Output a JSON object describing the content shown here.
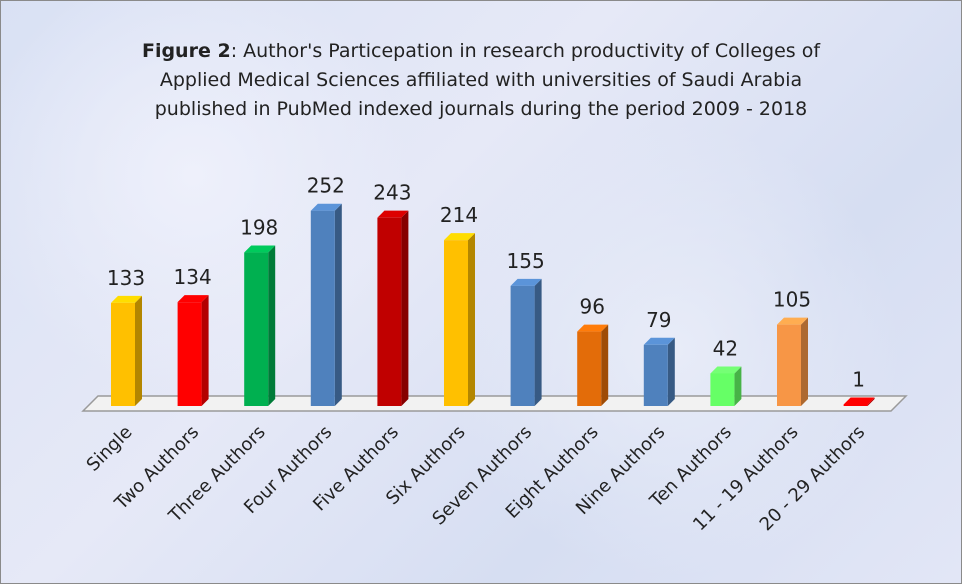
{
  "chart_data": {
    "type": "bar3d",
    "title_prefix": "Figure 2",
    "title": ": Author's Particepation in research productivity of Colleges of Applied Medical Sciences affiliated with universities of Saudi Arabia published in PubMed indexed journals during the period 2009 - 2018",
    "categories": [
      "Single",
      "Two Authors",
      "Three Authors",
      "Four Authors",
      "Five Authors",
      "Six Authors",
      "Seven Authors",
      "Eight Authors",
      "Nine Authors",
      "Ten Authors",
      "11 - 19 Authors",
      "20 - 29 Authors"
    ],
    "values": [
      133,
      134,
      198,
      252,
      243,
      214,
      155,
      96,
      79,
      42,
      105,
      1
    ],
    "colors": [
      "#ffc000",
      "#ff0000",
      "#00b050",
      "#4f81bd",
      "#c00000",
      "#ffc000",
      "#4f81bd",
      "#e36c09",
      "#4f81bd",
      "#66ff66",
      "#f79646",
      "#ff0000"
    ]
  }
}
